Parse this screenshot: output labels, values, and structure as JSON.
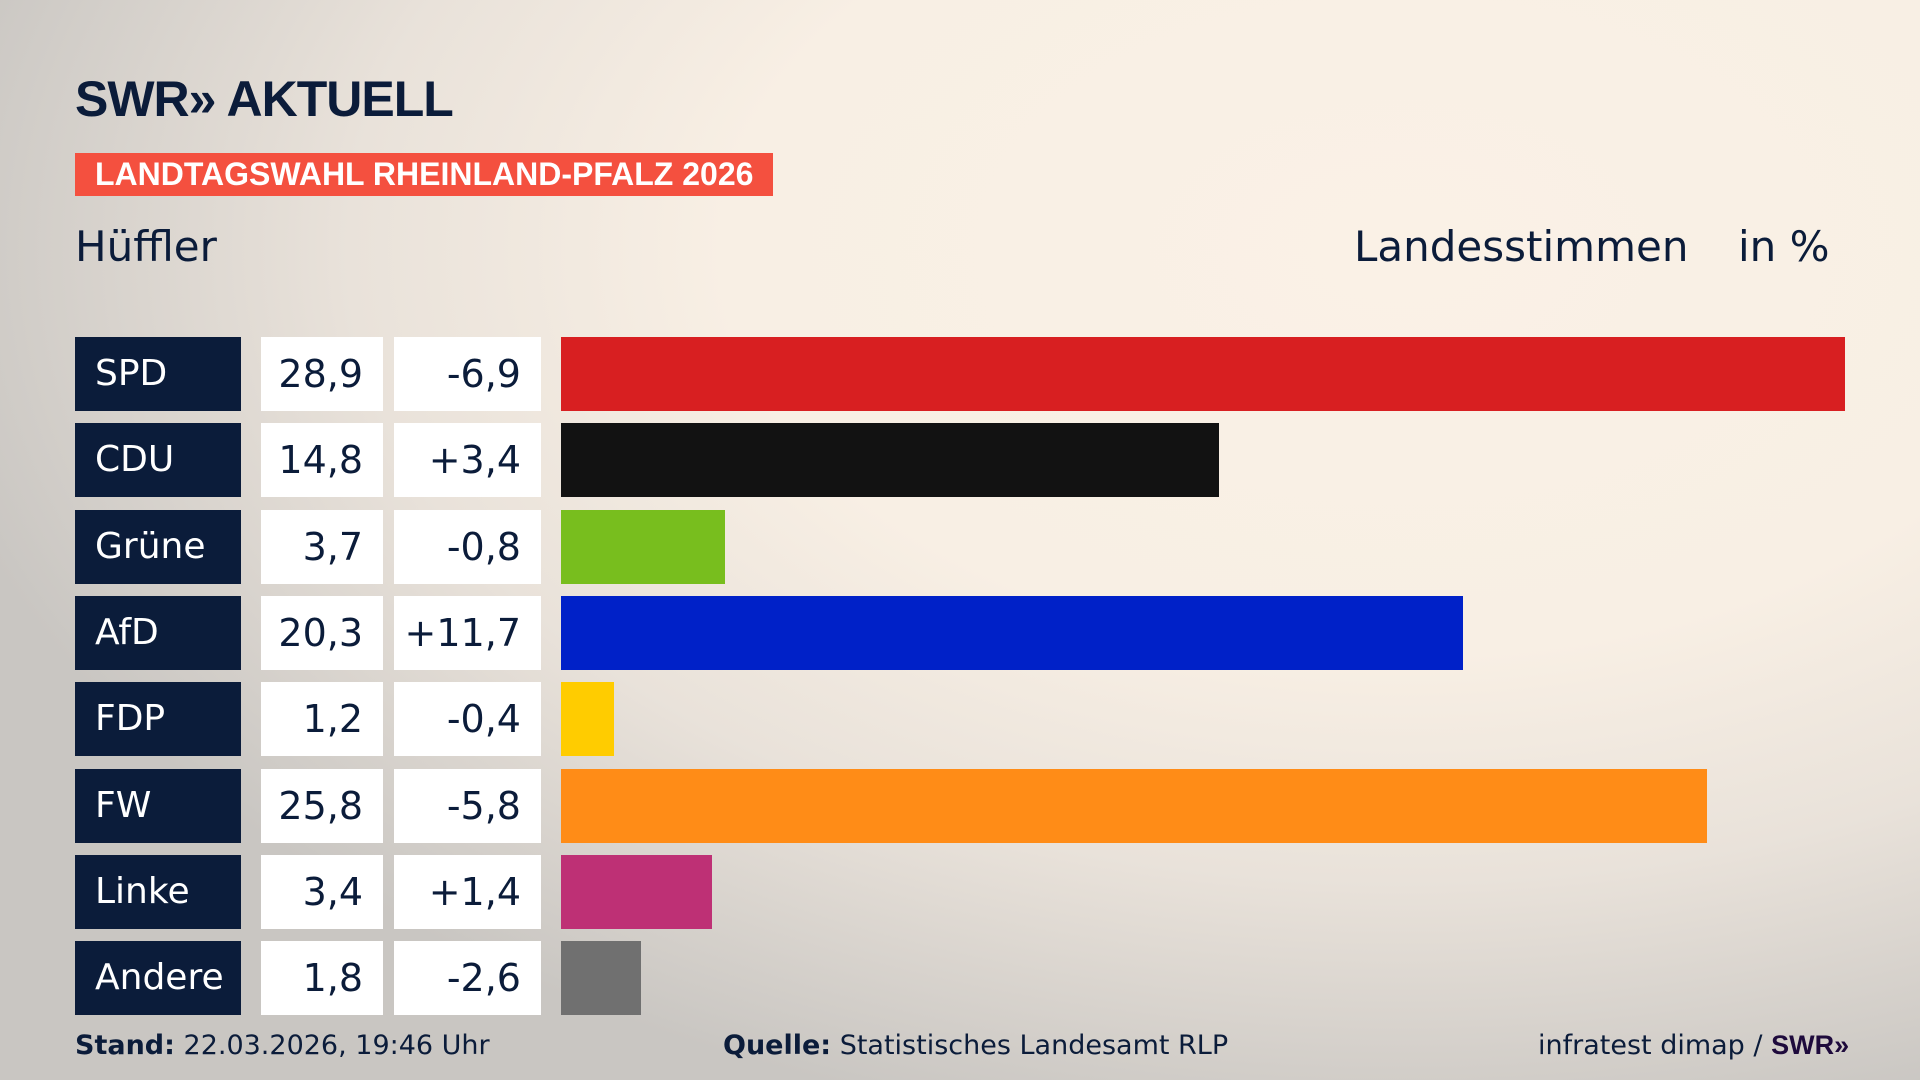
{
  "header": {
    "logo": "SWR» AKTUELL",
    "banner": "LANDTAGSWAHL RHEINLAND-PFALZ 2026",
    "constituency": "Hüffler",
    "measure": "Landesstimmen",
    "unit": "in %"
  },
  "chart_data": {
    "type": "bar",
    "orientation": "horizontal",
    "xlim": [
      0,
      28.9
    ],
    "categories": [
      "SPD",
      "CDU",
      "Grüne",
      "AfD",
      "FDP",
      "FW",
      "Linke",
      "Andere"
    ],
    "values": [
      28.9,
      14.8,
      3.7,
      20.3,
      1.2,
      25.8,
      3.4,
      1.8
    ],
    "value_labels": [
      "28,9",
      "14,8",
      "3,7",
      "20,3",
      "1,2",
      "25,8",
      "3,4",
      "1,8"
    ],
    "diff_labels": [
      "-6,9",
      "+3,4",
      "-0,8",
      "+11,7",
      "-0,4",
      "-5,8",
      "+1,4",
      "-2,6"
    ],
    "colors": [
      "#d81f21",
      "#121212",
      "#78be1e",
      "#0021c8",
      "#ffcc00",
      "#ff8c17",
      "#be3075",
      "#707070"
    ]
  },
  "footer": {
    "stand_label": "Stand:",
    "stand_value": "22.03.2026, 19:46 Uhr",
    "source_label": "Quelle:",
    "source_value": "Statistisches Landesamt RLP",
    "credit": "infratest dimap /",
    "credit_logo": "SWR»"
  }
}
